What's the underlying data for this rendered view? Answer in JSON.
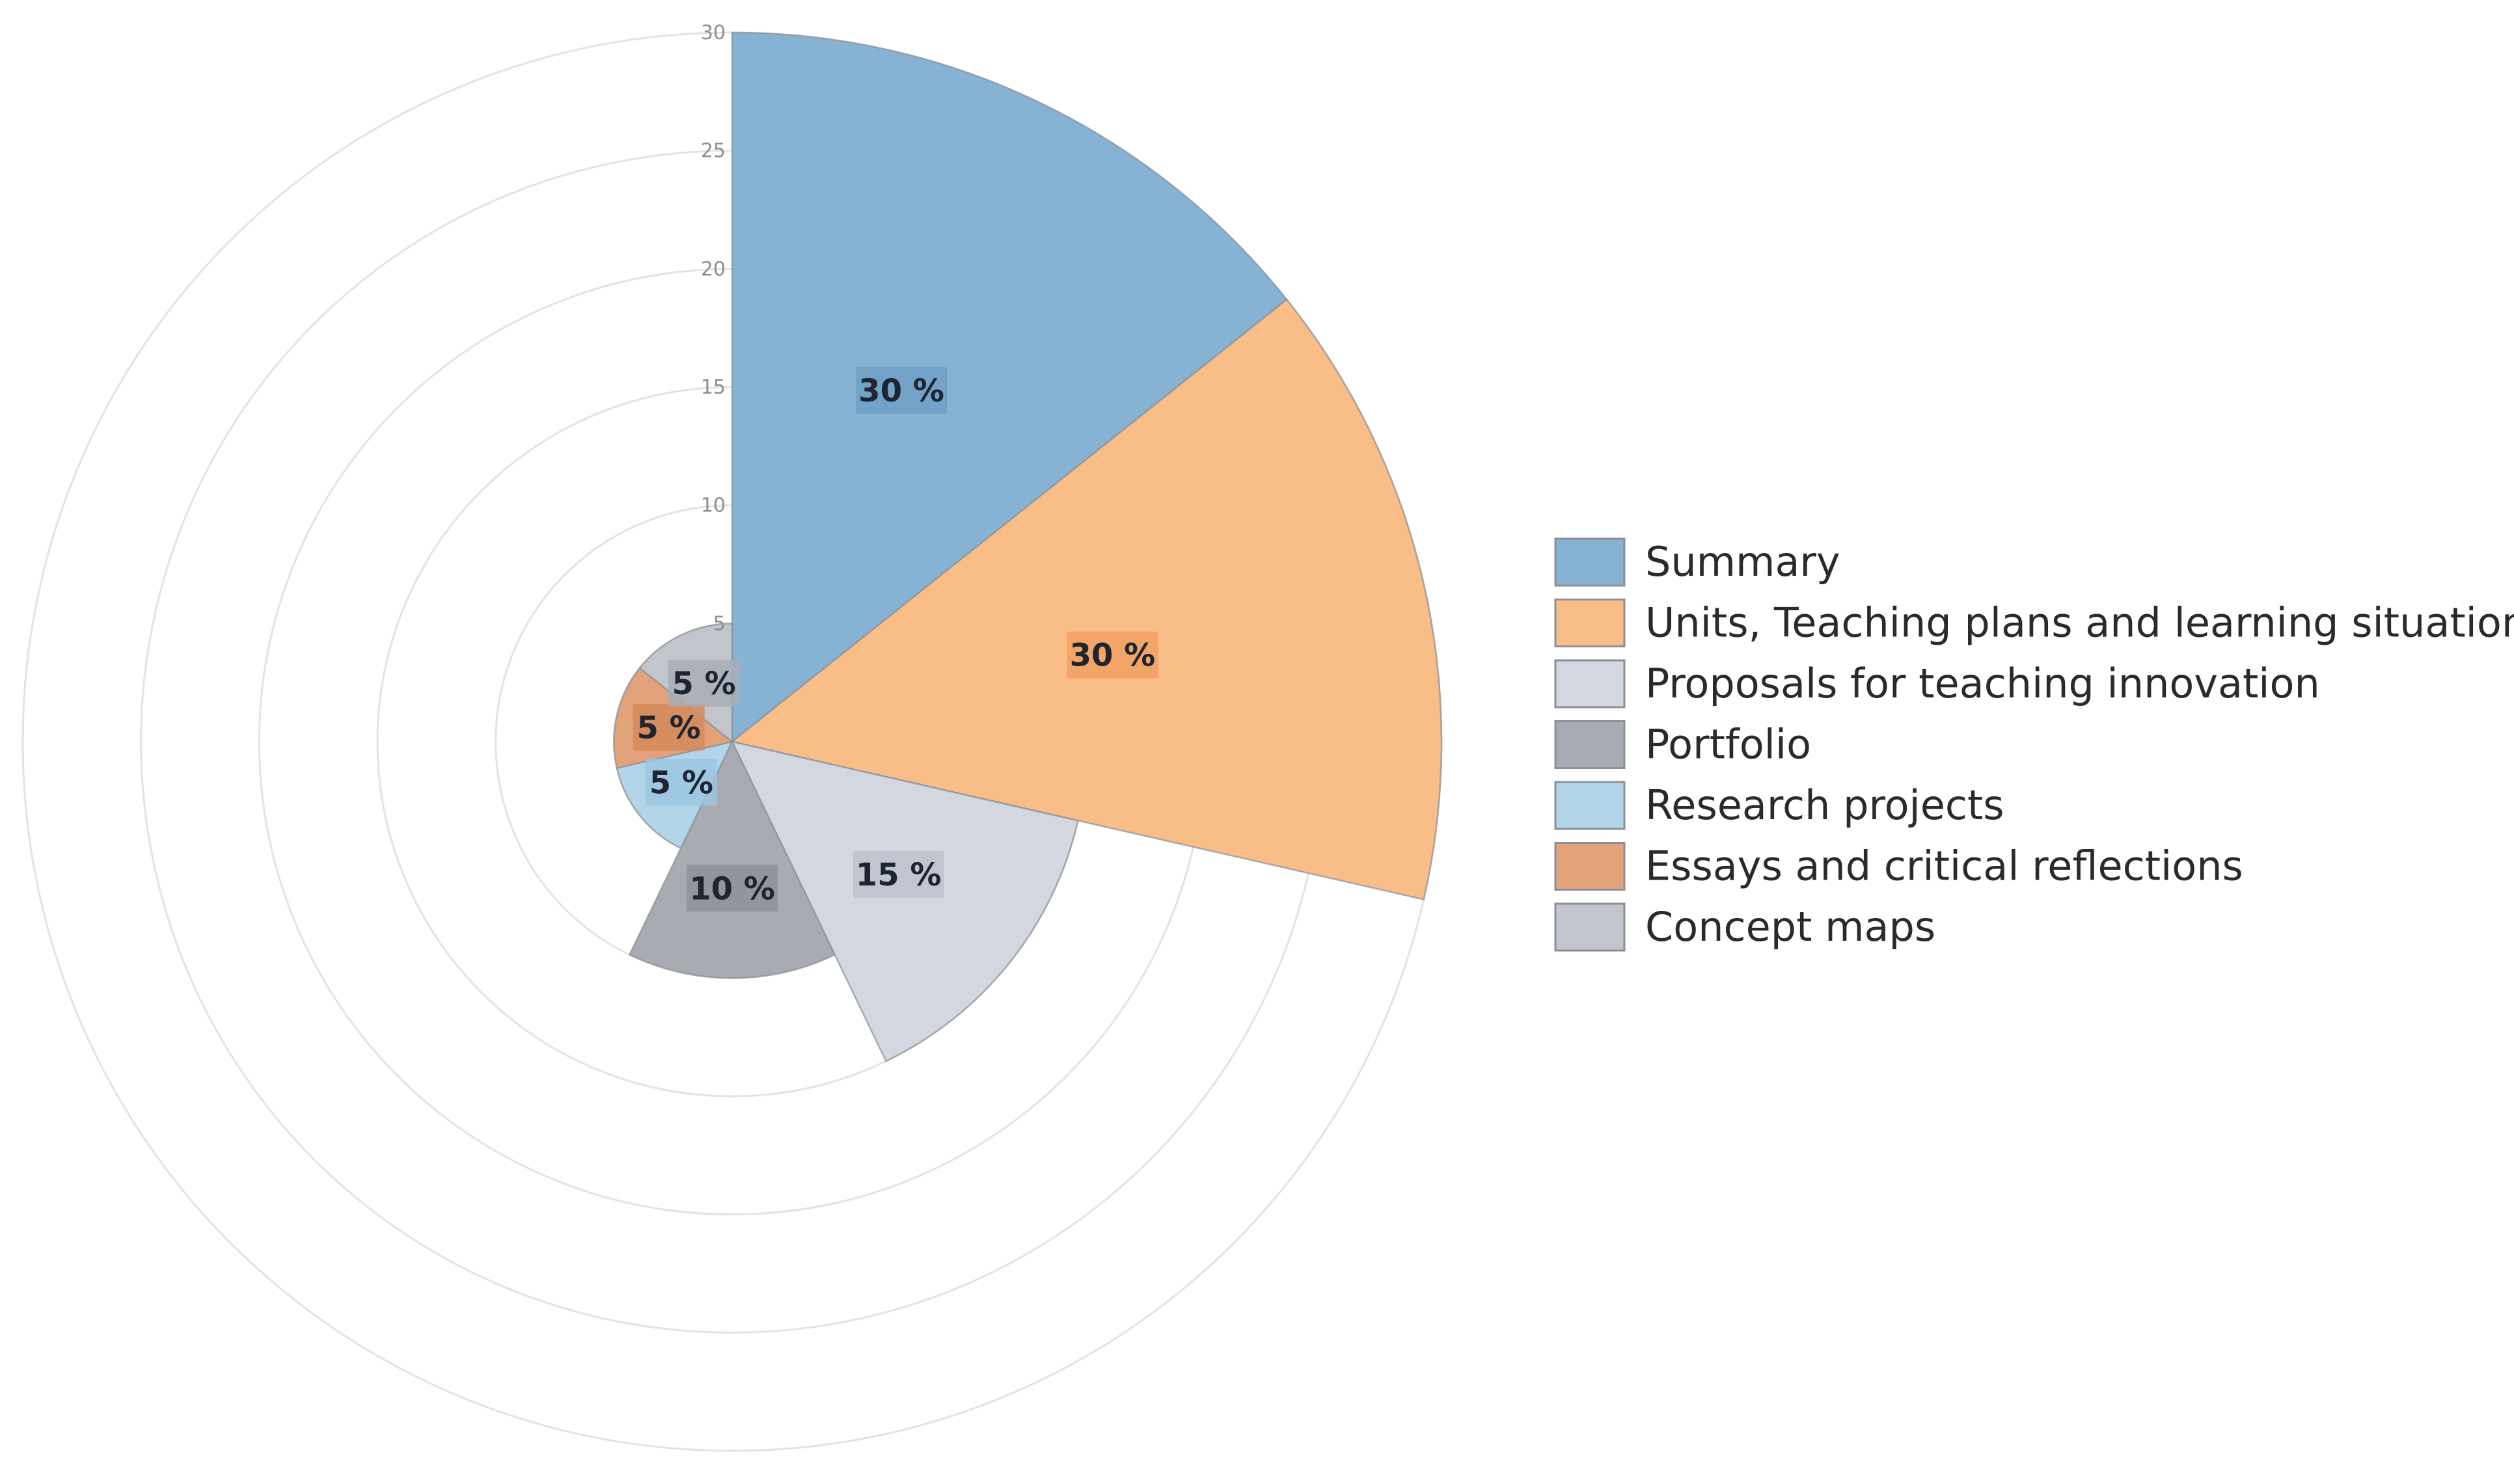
{
  "chart_data": {
    "type": "polar-area",
    "rlim": [
      0,
      30
    ],
    "r_ticks": [
      "0",
      "5",
      "10",
      "15",
      "20",
      "25",
      "30"
    ],
    "grid": true,
    "legend_position": "right",
    "categories": [
      "Summary",
      "Units, Teaching plans and learning situations",
      "Proposals for teaching innovation",
      "Portfolio",
      "Research projects",
      "Essays and critical reflections",
      "Concept maps"
    ],
    "values": [
      30,
      30,
      15,
      10,
      5,
      5,
      5
    ],
    "data_labels": [
      "30 %",
      "30 %",
      "15 %",
      "10 %",
      "5 %",
      "5 %",
      "5 %"
    ],
    "colors": [
      "#86b3d3",
      "#f9bd88",
      "#d3d8e0",
      "#a9abb3",
      "#b2d5ea",
      "#e3a37a",
      "#c2c5cc"
    ],
    "label_bg_colors": [
      "#6e9fc4",
      "#f1a162",
      "#bcc2cc",
      "#8e9099",
      "#9bc6e0",
      "#d38a5c",
      "#a9adb5"
    ]
  }
}
